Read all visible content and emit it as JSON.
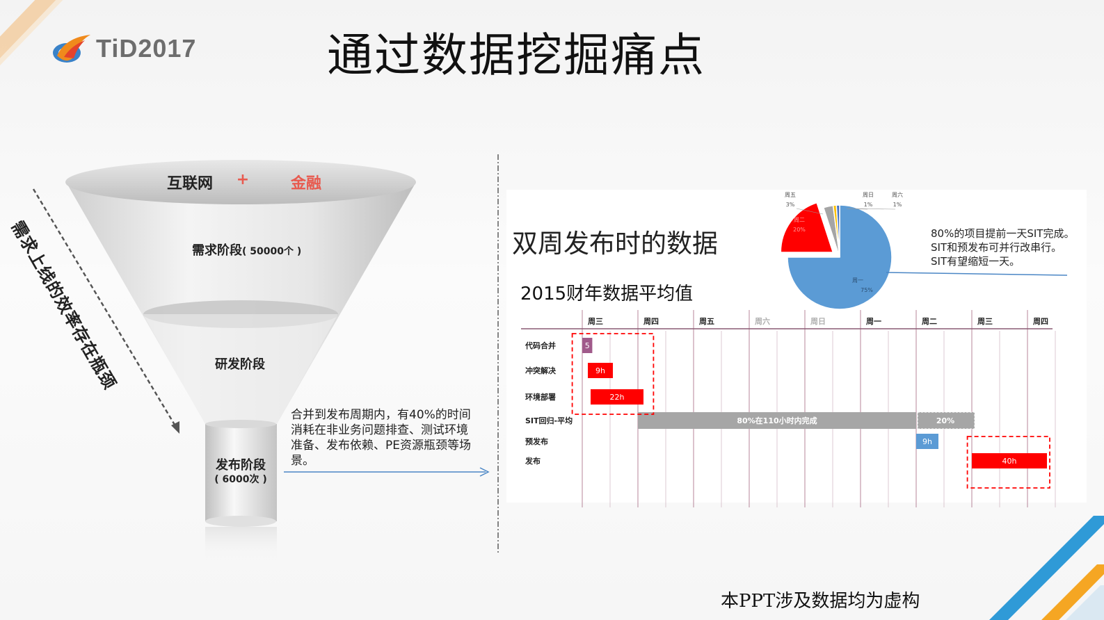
{
  "logo": {
    "text": "TiD2017"
  },
  "slide_title": "通过数据挖掘痛点",
  "funnel": {
    "top_left": "互联网",
    "top_plus": "+",
    "top_right": "金融",
    "stage1": "需求阶段",
    "stage1_count": "( 50000个 )",
    "stage2": "研发阶段",
    "stage3": "发布阶段",
    "stage3_count": "( 6000次 )",
    "side_text": "需求上线的效率存在瓶颈",
    "note": "合并到发布周期内，有40%的时间消耗在非业务问题排查、测试环境准备、发布依赖、PE资源瓶颈等场景。"
  },
  "right": {
    "subtitle": "双周发布时的数据",
    "caption": "2015财年数据平均值",
    "pie_note_lines": [
      "80%的项目提前一天SIT完成。",
      "SIT和预发布可并行改串行。",
      "SIT有望缩短一天。"
    ]
  },
  "chart_data": [
    {
      "type": "pie",
      "slices": [
        {
          "label": "周一",
          "value": 75,
          "text": "75%",
          "color": "#5b9bd5"
        },
        {
          "label": "周二",
          "value": 20,
          "text": "20%",
          "color": "#ff0000"
        },
        {
          "label": "周五",
          "value": 3,
          "text": "3%",
          "color": "#a5a5a5"
        },
        {
          "label": "周日",
          "value": 1,
          "text": "1%",
          "color": "#ffc000"
        },
        {
          "label": "周六",
          "value": 1,
          "text": "1%",
          "color": "#4472c4"
        }
      ]
    },
    {
      "type": "gantt",
      "days": [
        {
          "label": "周三",
          "muted": false
        },
        {
          "label": "周四",
          "muted": false
        },
        {
          "label": "周五",
          "muted": false
        },
        {
          "label": "周六",
          "muted": true
        },
        {
          "label": "周日",
          "muted": true
        },
        {
          "label": "周一",
          "muted": false
        },
        {
          "label": "周二",
          "muted": false
        },
        {
          "label": "周三",
          "muted": false
        },
        {
          "label": "周四",
          "muted": false
        }
      ],
      "tasks": [
        {
          "name": "代码合并",
          "start": 0.0,
          "end": 0.18,
          "label": "5",
          "color": "#a05a8a"
        },
        {
          "name": "冲突解决",
          "start": 0.1,
          "end": 0.55,
          "label": "9h",
          "color": "#ff0000"
        },
        {
          "name": "环境部署",
          "start": 0.15,
          "end": 1.1,
          "label": "22h",
          "color": "#ff0000"
        },
        {
          "name": "SIT回归-平均",
          "start": 1.0,
          "end": 6.0,
          "label": "80%在110小时内完成",
          "color": "#a6a6a6",
          "extra": {
            "start": 6.0,
            "end": 7.05,
            "label": "20%",
            "color": "#a6a6a6"
          }
        },
        {
          "name": "预发布",
          "start": 6.0,
          "end": 6.4,
          "label": "9h",
          "color": "#5b9bd5"
        },
        {
          "name": "发布",
          "start": 7.0,
          "end": 8.35,
          "label": "40h",
          "color": "#ff0000"
        }
      ]
    }
  ],
  "footnote": "本PPT涉及数据均为虚构"
}
